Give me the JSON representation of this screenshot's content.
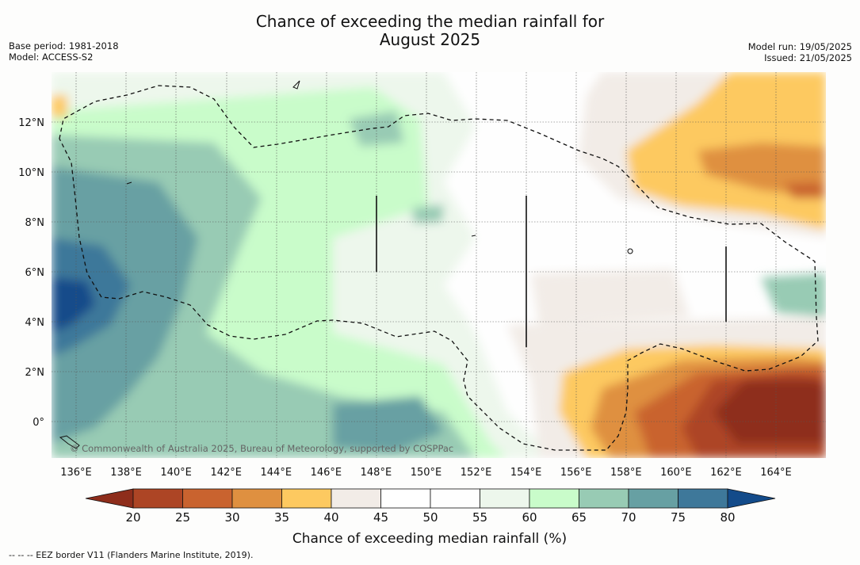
{
  "title_line1": "Chance of exceeding the median rainfall for",
  "title_line2": "August 2025",
  "base_period": "Base period: 1981-2018",
  "model": "Model: ACCESS-S2",
  "model_run": "Model run: 19/05/2025",
  "issued": "Issued: 21/05/2025",
  "copyright": "© Commonwealth of Australia 2025, Bureau of Meteorology, supported by COSPPac",
  "footnote": "--  --  -- EEZ border V11 (Flanders Marine Institute, 2019).",
  "map": {
    "lon_range": [
      135,
      166
    ],
    "lat_range": [
      -1.5,
      14
    ],
    "lon_ticks": [
      "136°E",
      "138°E",
      "140°E",
      "142°E",
      "144°E",
      "146°E",
      "148°E",
      "150°E",
      "152°E",
      "154°E",
      "156°E",
      "158°E",
      "160°E",
      "162°E",
      "164°E"
    ],
    "lat_ticks": [
      "12°N",
      "10°N",
      "8°N",
      "6°N",
      "4°N",
      "2°N",
      "0°"
    ],
    "grid": true
  },
  "colorbar": {
    "label": "Chance of exceeding median rainfall (%)",
    "ticks": [
      "20",
      "25",
      "30",
      "35",
      "40",
      "45",
      "50",
      "55",
      "60",
      "65",
      "70",
      "75",
      "80"
    ],
    "colors": [
      "#8e2d1b",
      "#ad4525",
      "#c9632f",
      "#df9040",
      "#fdc960",
      "#f2ece7",
      "#ffffff",
      "#fefefe",
      "#edf7ec",
      "#c9fcca",
      "#98cbb4",
      "#67a0a3",
      "#3e789a",
      "#134b8a"
    ]
  }
}
